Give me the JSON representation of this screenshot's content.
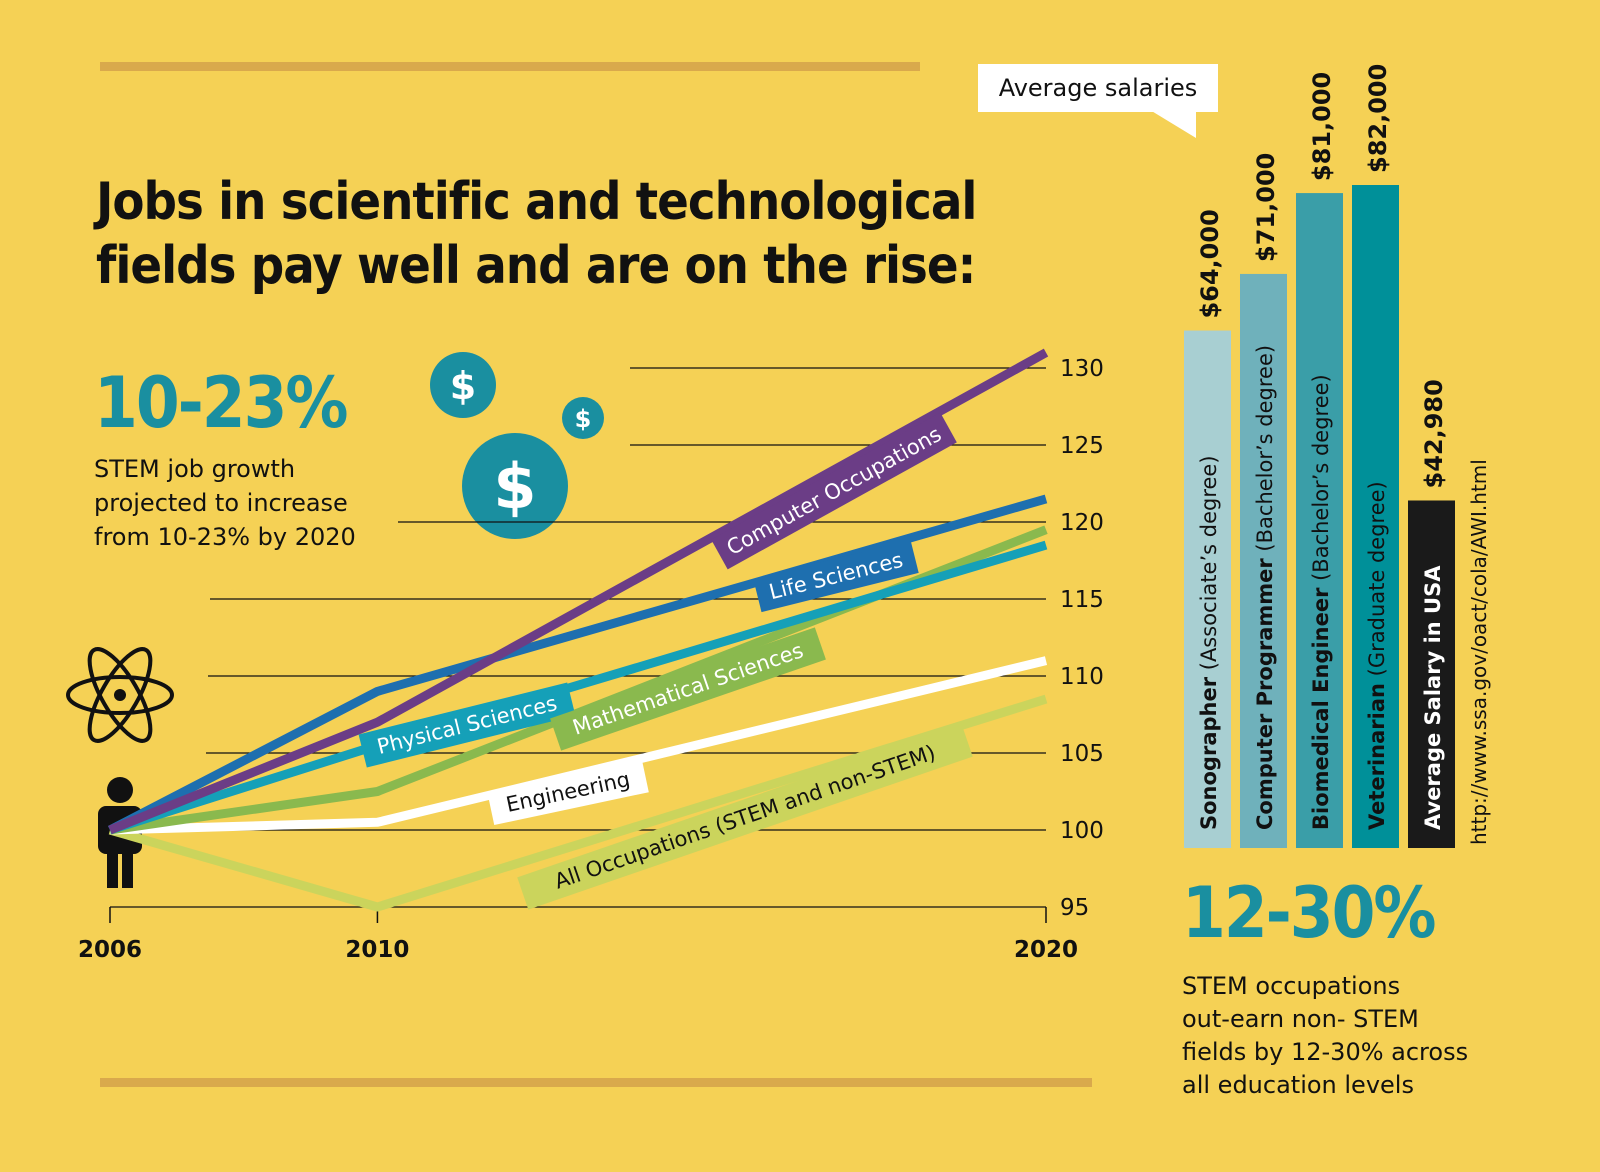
{
  "headline": {
    "line1": "Jobs in scientific and technological",
    "line2": "fields pay well and are on the rise:"
  },
  "stat_growth": {
    "value": "10-23%",
    "line1": "STEM job growth",
    "line2": "projected to increase",
    "line3": "from 10-23% by 2020"
  },
  "stat_earn": {
    "value": "12-30%",
    "line1": "STEM occupations",
    "line2": "out-earn non- STEM",
    "line3": "fields by 12-30% across",
    "line4": "all education levels"
  },
  "icons": [
    "dollar-icon",
    "atom-icon",
    "person-icon"
  ],
  "colors": {
    "background": "#f5d155",
    "computer": "#6b3d86",
    "life": "#1e6faf",
    "physical": "#15a0b8",
    "math": "#8ab94e",
    "engineering": "#ffffff",
    "all": "#cbd45c",
    "teal": "#1a8fa0"
  },
  "salary_title": "Average salaries",
  "source": "http://www.ssa.gov/oact/cola/AWI.html",
  "chart_data": [
    {
      "type": "line",
      "x": [
        2006,
        2010,
        2020
      ],
      "x_tick_labels": [
        "2006",
        "2010",
        "2020"
      ],
      "ylim": [
        95,
        130
      ],
      "y_ticks": [
        95,
        100,
        105,
        110,
        115,
        120,
        125,
        130
      ],
      "series": [
        {
          "name": "Computer Occupations",
          "values": [
            100,
            107,
            131
          ],
          "color": "#6b3d86"
        },
        {
          "name": "Life Sciences",
          "values": [
            100,
            109,
            121.5
          ],
          "color": "#1e6faf"
        },
        {
          "name": "Physical Sciences",
          "values": [
            100,
            105.5,
            118.5
          ],
          "color": "#15a0b8"
        },
        {
          "name": "Mathematical Sciences",
          "values": [
            100,
            102.5,
            119.5
          ],
          "color": "#8ab94e"
        },
        {
          "name": "Engineering",
          "values": [
            100,
            100.5,
            111
          ],
          "color": "#ffffff"
        },
        {
          "name": "All Occupations (STEM and non-STEM)",
          "values": [
            100,
            95,
            108.5
          ],
          "color": "#cbd45c"
        }
      ]
    },
    {
      "type": "bar",
      "title": "Average salaries",
      "bars": [
        {
          "role": "Sonographer",
          "degree": "(Associate’s degree)",
          "value": 64000,
          "value_label": "$64,000",
          "color": "#a8cfd2"
        },
        {
          "role": "Computer Programmer",
          "degree": "(Bachelor’s degree)",
          "value": 71000,
          "value_label": "$71,000",
          "color": "#6fb1bb"
        },
        {
          "role": "Biomedical Engineer",
          "degree": "(Bachelor’s degree)",
          "value": 81000,
          "value_label": "$81,000",
          "color": "#3a9ea8"
        },
        {
          "role": "Veterinarian",
          "degree": "(Graduate degree)",
          "value": 82000,
          "value_label": "$82,000",
          "color": "#009099"
        },
        {
          "role": "Average Salary in USA",
          "degree": "",
          "value": 42980,
          "value_label": "$42,980",
          "color": "#1a1a1a"
        }
      ]
    }
  ]
}
